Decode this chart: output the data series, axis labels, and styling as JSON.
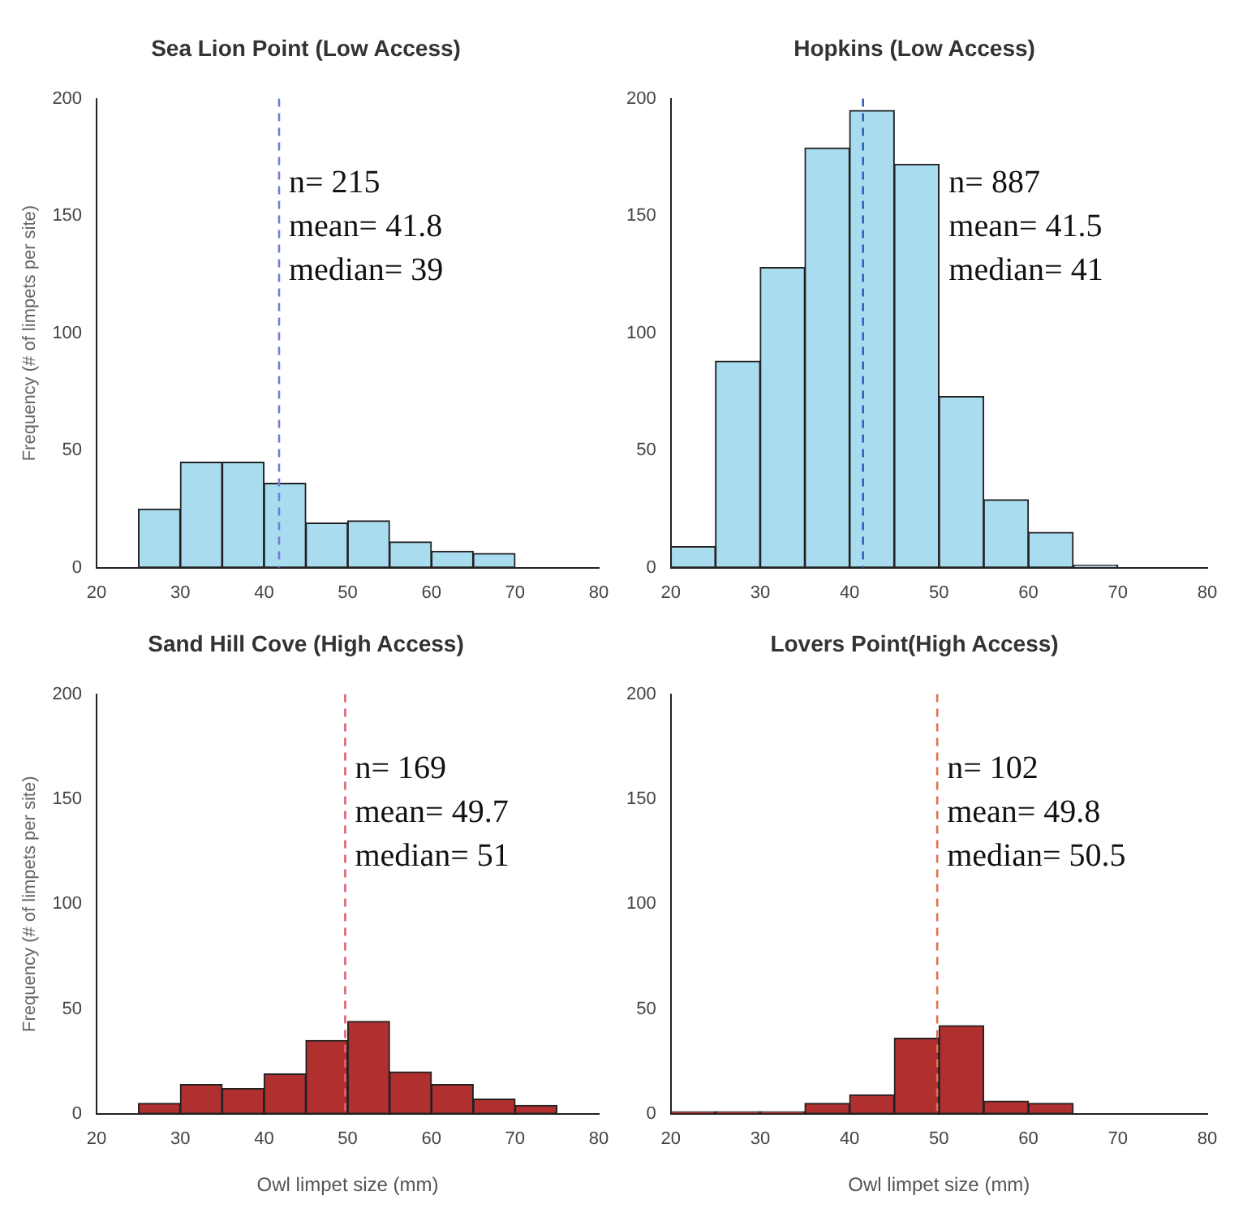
{
  "chart_data": [
    {
      "type": "histogram",
      "title": "Sea Lion Point (Low Access)",
      "ylabel": "Frequency (# of limpets per site)",
      "bins": [
        25,
        30,
        35,
        40,
        45,
        50,
        55,
        60,
        65,
        70
      ],
      "values": [
        25,
        45,
        45,
        36,
        19,
        20,
        11,
        7,
        6
      ],
      "color": "#aadcf0",
      "xlim": [
        20,
        80
      ],
      "xticks": [
        20,
        30,
        40,
        50,
        60,
        70,
        80
      ],
      "ylim": [
        0,
        200
      ],
      "yticks": [
        0,
        50,
        100,
        150,
        200
      ],
      "grid": false,
      "legend": false,
      "ref_lines": [
        {
          "axis": "x",
          "value": 41.8,
          "color": "#7080d8",
          "line_style": "dashed"
        }
      ],
      "annotations": [
        "n= 215",
        "mean= 41.8",
        "median= 39"
      ]
    },
    {
      "type": "histogram",
      "title": "Hopkins (Low Access)",
      "bins": [
        20,
        25,
        30,
        35,
        40,
        45,
        50,
        55,
        60,
        65,
        70
      ],
      "values": [
        9,
        88,
        128,
        179,
        195,
        172,
        73,
        29,
        15,
        1
      ],
      "color": "#aadcf0",
      "xlim": [
        20,
        80
      ],
      "xticks": [
        20,
        30,
        40,
        50,
        60,
        70,
        80
      ],
      "ylim": [
        0,
        200
      ],
      "yticks": [
        0,
        50,
        100,
        150,
        200
      ],
      "grid": false,
      "legend": false,
      "ref_lines": [
        {
          "axis": "x",
          "value": 41.5,
          "color": "#3060c0",
          "line_style": "dashed"
        }
      ],
      "annotations": [
        "n= 887",
        "mean= 41.5",
        "median= 41"
      ]
    },
    {
      "type": "histogram",
      "title": "Sand Hill Cove (High Access)",
      "ylabel": "Frequency (# of limpets per site)",
      "xlabel": "Owl limpet size (mm)",
      "bins": [
        25,
        30,
        35,
        40,
        45,
        50,
        55,
        60,
        65,
        70,
        75
      ],
      "values": [
        5,
        14,
        12,
        19,
        35,
        44,
        20,
        14,
        7,
        4
      ],
      "color": "#b03030",
      "xlim": [
        20,
        80
      ],
      "xticks": [
        20,
        30,
        40,
        50,
        60,
        70,
        80
      ],
      "ylim": [
        0,
        200
      ],
      "yticks": [
        0,
        50,
        100,
        150,
        200
      ],
      "grid": false,
      "legend": false,
      "ref_lines": [
        {
          "axis": "x",
          "value": 49.7,
          "color": "#e06070",
          "line_style": "dashed"
        }
      ],
      "annotations": [
        "n= 169",
        "mean= 49.7",
        "median= 51"
      ]
    },
    {
      "type": "histogram",
      "title": "Lovers Point(High Access)",
      "xlabel": "Owl limpet size (mm)",
      "bins": [
        20,
        25,
        30,
        35,
        40,
        45,
        50,
        55,
        60,
        65
      ],
      "values": [
        1,
        1,
        1,
        5,
        9,
        36,
        42,
        6,
        5
      ],
      "color": "#b03030",
      "xlim": [
        20,
        80
      ],
      "xticks": [
        20,
        30,
        40,
        50,
        60,
        70,
        80
      ],
      "ylim": [
        0,
        200
      ],
      "yticks": [
        0,
        50,
        100,
        150,
        200
      ],
      "grid": false,
      "legend": false,
      "ref_lines": [
        {
          "axis": "x",
          "value": 49.8,
          "color": "#e07050",
          "line_style": "dashed"
        }
      ],
      "annotations": [
        "n= 102",
        "mean= 49.8",
        "median= 50.5"
      ]
    }
  ]
}
